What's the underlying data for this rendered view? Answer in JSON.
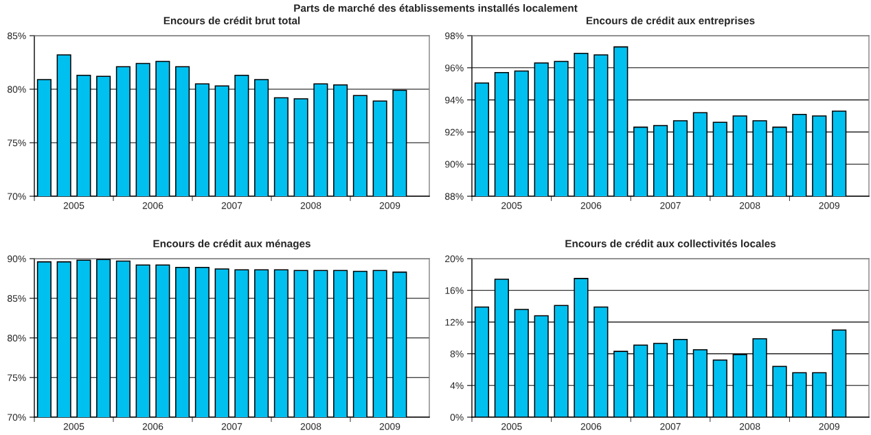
{
  "chart_data": [
    {
      "type": "bar",
      "title": "Encours de crédit brut total",
      "annotations": [
        "Parts de marché des établissements installés localement"
      ],
      "x": [
        2005.125,
        2005.375,
        2005.625,
        2005.875,
        2006.125,
        2006.375,
        2006.625,
        2006.875,
        2007.125,
        2007.375,
        2007.625,
        2007.875,
        2008.125,
        2008.375,
        2008.625,
        2008.875,
        2009.125,
        2009.375,
        2009.625
      ],
      "series": [
        {
          "color": "#00c0f0",
          "values": [
            80.9,
            83.2,
            81.3,
            81.2,
            82.1,
            82.4,
            82.6,
            82.1,
            80.5,
            80.3,
            81.3,
            80.9,
            79.2,
            79.1,
            80.5,
            80.4,
            79.4,
            78.9,
            79.9
          ]
        }
      ],
      "xlim": [
        2005,
        2010
      ],
      "xticks": [
        {
          "value": 2005,
          "label": null
        },
        {
          "value": 2005.5,
          "label": "2005"
        },
        {
          "value": 2006,
          "label": null
        },
        {
          "value": 2006.5,
          "label": "2006"
        },
        {
          "value": 2007,
          "label": null
        },
        {
          "value": 2007.5,
          "label": "2007"
        },
        {
          "value": 2008,
          "label": null
        },
        {
          "value": 2008.5,
          "label": "2008"
        },
        {
          "value": 2009,
          "label": null
        },
        {
          "value": 2009.5,
          "label": "2009"
        }
      ],
      "ylim": [
        70,
        85
      ],
      "yticks": [
        {
          "value": 70,
          "label": "70%"
        },
        {
          "value": 75,
          "label": "75%"
        },
        {
          "value": 80,
          "label": "80%"
        },
        {
          "value": 85,
          "label": "85%"
        }
      ],
      "grid": "y"
    },
    {
      "type": "bar",
      "title": "Encours de crédit aux entreprises",
      "x": [
        2005.125,
        2005.375,
        2005.625,
        2005.875,
        2006.125,
        2006.375,
        2006.625,
        2006.875,
        2007.125,
        2007.375,
        2007.625,
        2007.875,
        2008.125,
        2008.375,
        2008.625,
        2008.875,
        2009.125,
        2009.375,
        2009.625
      ],
      "series": [
        {
          "color": "#00c0f0",
          "values": [
            95.05,
            95.7,
            95.8,
            96.3,
            96.4,
            96.9,
            96.8,
            97.3,
            92.3,
            92.4,
            92.7,
            93.2,
            92.6,
            93.0,
            92.7,
            92.3,
            93.1,
            93.0,
            93.3
          ]
        }
      ],
      "xlim": [
        2005,
        2010
      ],
      "xticks": [
        {
          "value": 2005,
          "label": null
        },
        {
          "value": 2005.5,
          "label": "2005"
        },
        {
          "value": 2006,
          "label": null
        },
        {
          "value": 2006.5,
          "label": "2006"
        },
        {
          "value": 2007,
          "label": null
        },
        {
          "value": 2007.5,
          "label": "2007"
        },
        {
          "value": 2008,
          "label": null
        },
        {
          "value": 2008.5,
          "label": "2008"
        },
        {
          "value": 2009,
          "label": null
        },
        {
          "value": 2009.5,
          "label": "2009"
        }
      ],
      "ylim": [
        88,
        98
      ],
      "yticks": [
        {
          "value": 88,
          "label": "88%"
        },
        {
          "value": 90,
          "label": "90%"
        },
        {
          "value": 92,
          "label": "92%"
        },
        {
          "value": 94,
          "label": "94%"
        },
        {
          "value": 96,
          "label": "96%"
        },
        {
          "value": 98,
          "label": "98%"
        }
      ],
      "grid": "y"
    },
    {
      "type": "bar",
      "title": "Encours de crédit aux ménages",
      "x": [
        2005.125,
        2005.375,
        2005.625,
        2005.875,
        2006.125,
        2006.375,
        2006.625,
        2006.875,
        2007.125,
        2007.375,
        2007.625,
        2007.875,
        2008.125,
        2008.375,
        2008.625,
        2008.875,
        2009.125,
        2009.375,
        2009.625
      ],
      "series": [
        {
          "color": "#00c0f0",
          "values": [
            89.6,
            89.6,
            89.8,
            89.9,
            89.7,
            89.2,
            89.2,
            88.9,
            88.9,
            88.7,
            88.6,
            88.6,
            88.6,
            88.5,
            88.5,
            88.5,
            88.4,
            88.5,
            88.3
          ]
        }
      ],
      "xlim": [
        2005,
        2010
      ],
      "xticks": [
        {
          "value": 2005,
          "label": null
        },
        {
          "value": 2005.5,
          "label": "2005"
        },
        {
          "value": 2006,
          "label": null
        },
        {
          "value": 2006.5,
          "label": "2006"
        },
        {
          "value": 2007,
          "label": null
        },
        {
          "value": 2007.5,
          "label": "2007"
        },
        {
          "value": 2008,
          "label": null
        },
        {
          "value": 2008.5,
          "label": "2008"
        },
        {
          "value": 2009,
          "label": null
        },
        {
          "value": 2009.5,
          "label": "2009"
        }
      ],
      "ylim": [
        70,
        90
      ],
      "yticks": [
        {
          "value": 70,
          "label": "70%"
        },
        {
          "value": 75,
          "label": "75%"
        },
        {
          "value": 80,
          "label": "80%"
        },
        {
          "value": 85,
          "label": "85%"
        },
        {
          "value": 90,
          "label": "90%"
        }
      ],
      "grid": "y"
    },
    {
      "type": "bar",
      "title": "Encours de crédit aux collectivités locales",
      "x": [
        2005.125,
        2005.375,
        2005.625,
        2005.875,
        2006.125,
        2006.375,
        2006.625,
        2006.875,
        2007.125,
        2007.375,
        2007.625,
        2007.875,
        2008.125,
        2008.375,
        2008.625,
        2008.875,
        2009.125,
        2009.375,
        2009.625
      ],
      "series": [
        {
          "color": "#00c0f0",
          "values": [
            13.9,
            17.4,
            13.6,
            12.8,
            14.1,
            17.5,
            13.9,
            8.3,
            9.1,
            9.3,
            9.8,
            8.5,
            7.2,
            7.9,
            9.9,
            6.4,
            5.6,
            5.6,
            11.0
          ]
        }
      ],
      "xlim": [
        2005,
        2010
      ],
      "xticks": [
        {
          "value": 2005,
          "label": null
        },
        {
          "value": 2005.5,
          "label": "2005"
        },
        {
          "value": 2006,
          "label": null
        },
        {
          "value": 2006.5,
          "label": "2006"
        },
        {
          "value": 2007,
          "label": null
        },
        {
          "value": 2007.5,
          "label": "2007"
        },
        {
          "value": 2008,
          "label": null
        },
        {
          "value": 2008.5,
          "label": "2008"
        },
        {
          "value": 2009,
          "label": null
        },
        {
          "value": 2009.5,
          "label": "2009"
        }
      ],
      "ylim": [
        0,
        20
      ],
      "yticks": [
        {
          "value": 0,
          "label": "0%"
        },
        {
          "value": 4,
          "label": "4%"
        },
        {
          "value": 8,
          "label": "8%"
        },
        {
          "value": 12,
          "label": "12%"
        },
        {
          "value": 16,
          "label": "16%"
        },
        {
          "value": 20,
          "label": "20%"
        }
      ],
      "grid": "y"
    }
  ]
}
